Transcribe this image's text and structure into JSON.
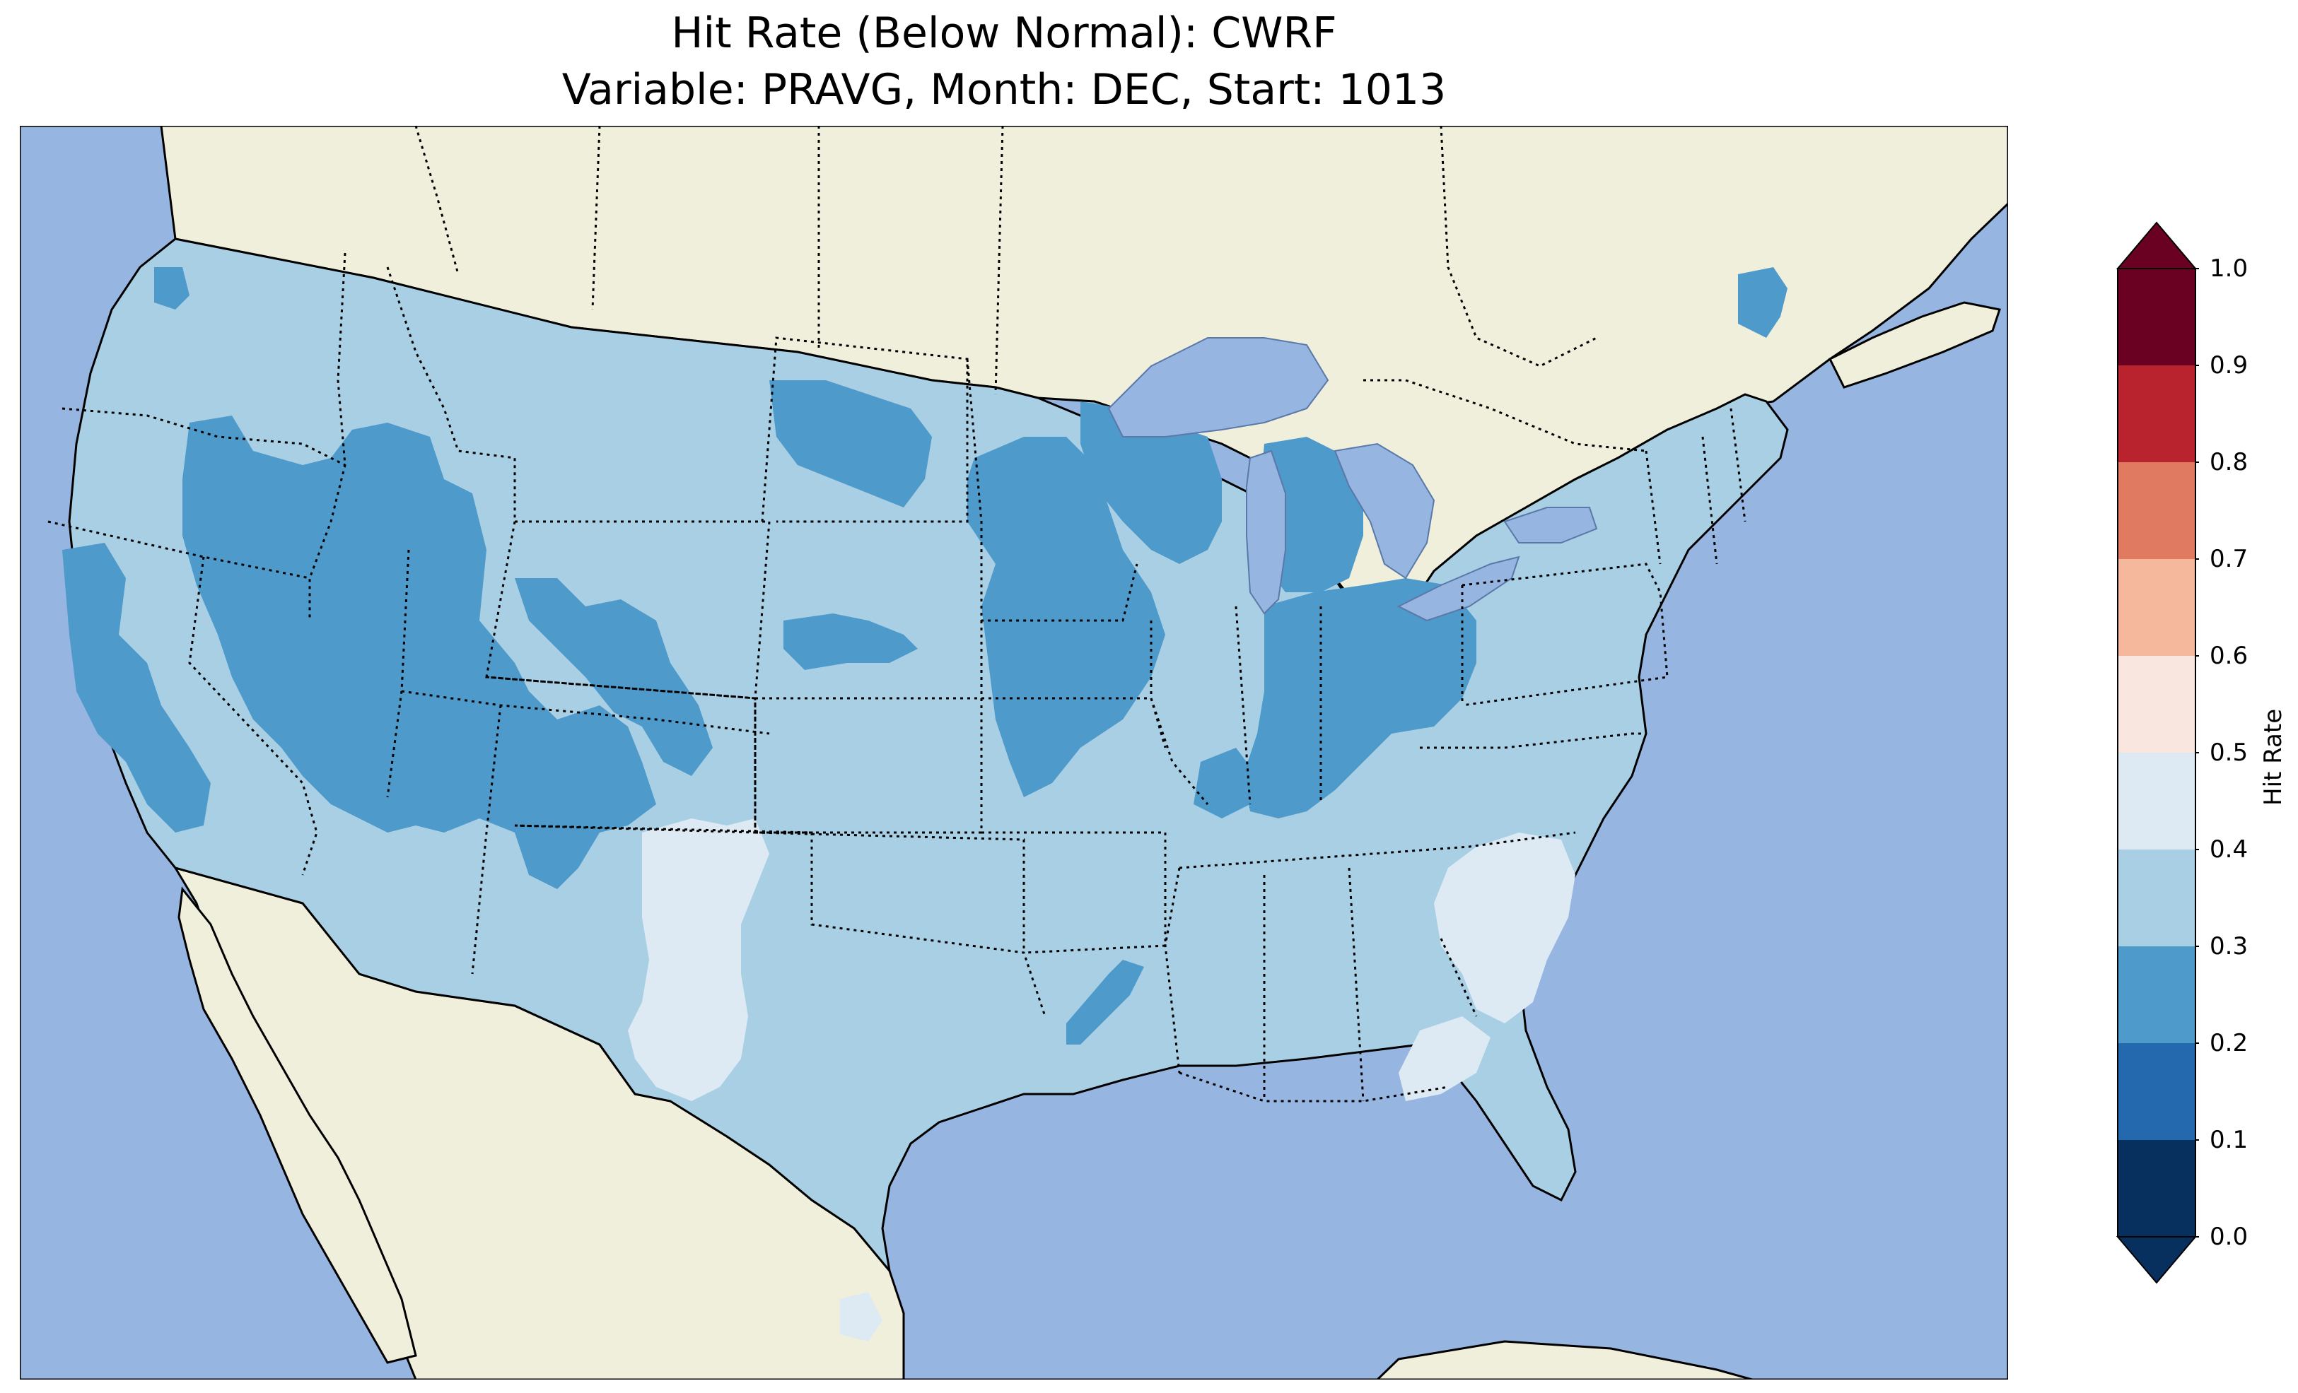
{
  "title": "Hit Rate (Below Normal): CWRF",
  "subtitle": "Variable: PRAVG, Month: DEC, Start: 1013",
  "colorbar": {
    "label": "Hit Rate",
    "ticks": [
      "0.0",
      "0.1",
      "0.2",
      "0.3",
      "0.4",
      "0.5",
      "0.6",
      "0.7",
      "0.8",
      "0.9",
      "1.0"
    ],
    "colors": [
      "#053061",
      "#2166ac",
      "#4393c3",
      "#92c5de",
      "#d1e5f0",
      "#f7f7f7",
      "#fddbc7",
      "#f4a582",
      "#d6604d",
      "#b2182b",
      "#67001f"
    ],
    "bin_colors": [
      "#08305f",
      "#2468ad",
      "#4e9acb",
      "#a8cfe4",
      "#ddeaf3",
      "#f8e6df",
      "#f6b89c",
      "#e07a60",
      "#b9232e",
      "#6a0022"
    ],
    "under_color": "#08305f",
    "over_color": "#6a0022"
  },
  "map": {
    "ocean_color": "#96b5e0",
    "land_color": "#efefdc",
    "lake_color": "#96b5e0",
    "class_colors": {
      "0.2-0.3": "#4e9acb",
      "0.3-0.4": "#a8cfe4",
      "0.4-0.5": "#ddeaf3"
    },
    "extent": {
      "lon": [
        -125,
        -66
      ],
      "lat": [
        22,
        50
      ]
    }
  }
}
